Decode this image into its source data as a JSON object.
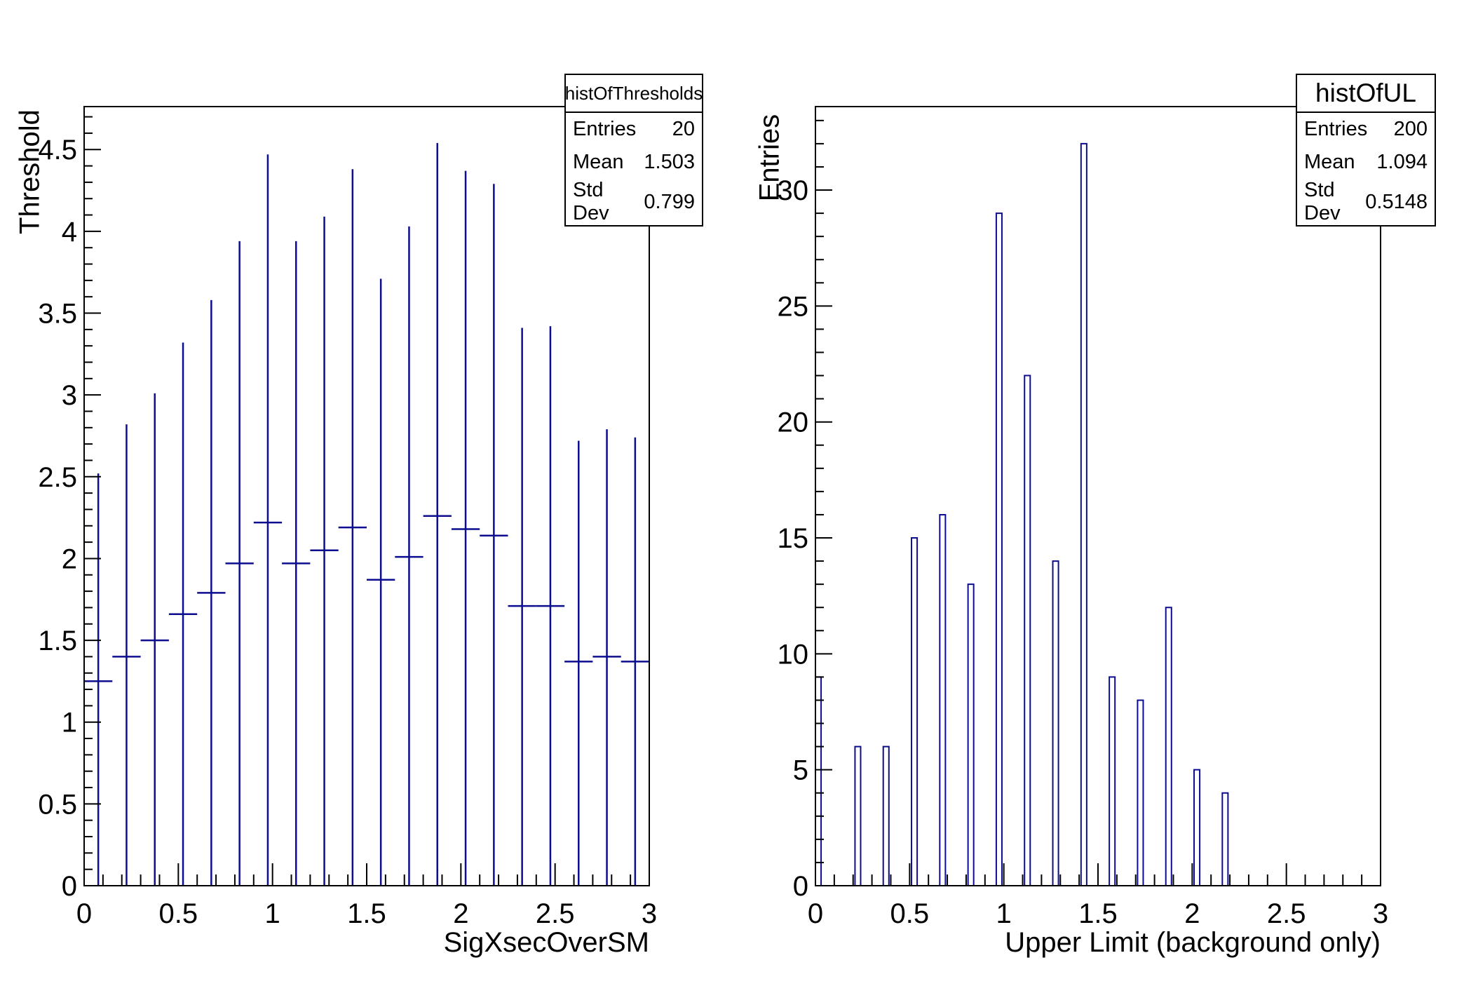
{
  "colors": {
    "hist_line": "#0d0d8f",
    "axis_line": "#000000",
    "text": "#000000",
    "background": "#ffffff"
  },
  "chart_data": [
    {
      "type": "errorbar",
      "hist_name": "histOfThresholds",
      "xlabel": "SigXsecOverSM",
      "ylabel": "Threshold",
      "xlim": [
        0,
        3
      ],
      "ylim": [
        0,
        4.7625
      ],
      "bin_width": 0.15,
      "x": [
        0.075,
        0.225,
        0.375,
        0.525,
        0.675,
        0.825,
        0.975,
        1.125,
        1.275,
        1.425,
        1.575,
        1.725,
        1.875,
        2.025,
        2.175,
        2.325,
        2.475,
        2.625,
        2.775,
        2.925
      ],
      "y": [
        1.25,
        1.4,
        1.5,
        1.66,
        1.79,
        1.97,
        2.22,
        1.97,
        2.05,
        2.19,
        1.87,
        2.01,
        2.26,
        2.18,
        2.14,
        1.71,
        1.71,
        1.37,
        1.4,
        1.37
      ],
      "y_err_top": [
        2.52,
        2.82,
        3.01,
        3.32,
        3.58,
        3.94,
        4.47,
        3.94,
        4.09,
        4.38,
        3.71,
        4.03,
        4.54,
        4.37,
        4.29,
        3.41,
        3.42,
        2.72,
        2.79,
        2.74
      ],
      "y_err_bottom": 0,
      "x_ticks": {
        "values": [
          0,
          0.5,
          1,
          1.5,
          2,
          2.5,
          3
        ],
        "labels": [
          "0",
          "0.5",
          "1",
          "1.5",
          "2",
          "2.5",
          "3"
        ],
        "minor_step": 0.1
      },
      "y_ticks": {
        "values": [
          0,
          0.5,
          1,
          1.5,
          2,
          2.5,
          3,
          3.5,
          4,
          4.5
        ],
        "labels": [
          "0",
          "0.5",
          "1",
          "1.5",
          "2",
          "2.5",
          "3",
          "3.5",
          "4",
          "4.5"
        ],
        "minor_step": 0.1
      },
      "stats": {
        "entries_label": "Entries",
        "entries": "20",
        "mean_label": "Mean",
        "mean": "1.503",
        "stddev_label": "Std Dev",
        "stddev": "0.799"
      }
    },
    {
      "type": "histogram",
      "hist_name": "histOfUL",
      "xlabel": "Upper Limit (background only)",
      "ylabel": "Entries",
      "xlim": [
        0,
        3
      ],
      "ylim": [
        0,
        33.6
      ],
      "bin_width": 0.03,
      "bars": [
        {
          "x0": 0.0,
          "count": 9
        },
        {
          "x0": 0.21,
          "count": 6
        },
        {
          "x0": 0.36,
          "count": 6
        },
        {
          "x0": 0.51,
          "count": 15
        },
        {
          "x0": 0.66,
          "count": 16
        },
        {
          "x0": 0.81,
          "count": 13
        },
        {
          "x0": 0.96,
          "count": 29
        },
        {
          "x0": 1.11,
          "count": 22
        },
        {
          "x0": 1.26,
          "count": 14
        },
        {
          "x0": 1.41,
          "count": 32
        },
        {
          "x0": 1.56,
          "count": 9
        },
        {
          "x0": 1.71,
          "count": 8
        },
        {
          "x0": 1.86,
          "count": 12
        },
        {
          "x0": 2.01,
          "count": 5
        },
        {
          "x0": 2.16,
          "count": 4
        }
      ],
      "x_ticks": {
        "values": [
          0,
          0.5,
          1,
          1.5,
          2,
          2.5,
          3
        ],
        "labels": [
          "0",
          "0.5",
          "1",
          "1.5",
          "2",
          "2.5",
          "3"
        ],
        "minor_step": 0.1
      },
      "y_ticks": {
        "values": [
          0,
          5,
          10,
          15,
          20,
          25,
          30
        ],
        "labels": [
          "0",
          "5",
          "10",
          "15",
          "20",
          "25",
          "30"
        ],
        "minor_step": 1
      },
      "stats": {
        "entries_label": "Entries",
        "entries": "200",
        "mean_label": "Mean",
        "mean": "1.094",
        "stddev_label": "Std Dev",
        "stddev": "0.5148"
      }
    }
  ]
}
